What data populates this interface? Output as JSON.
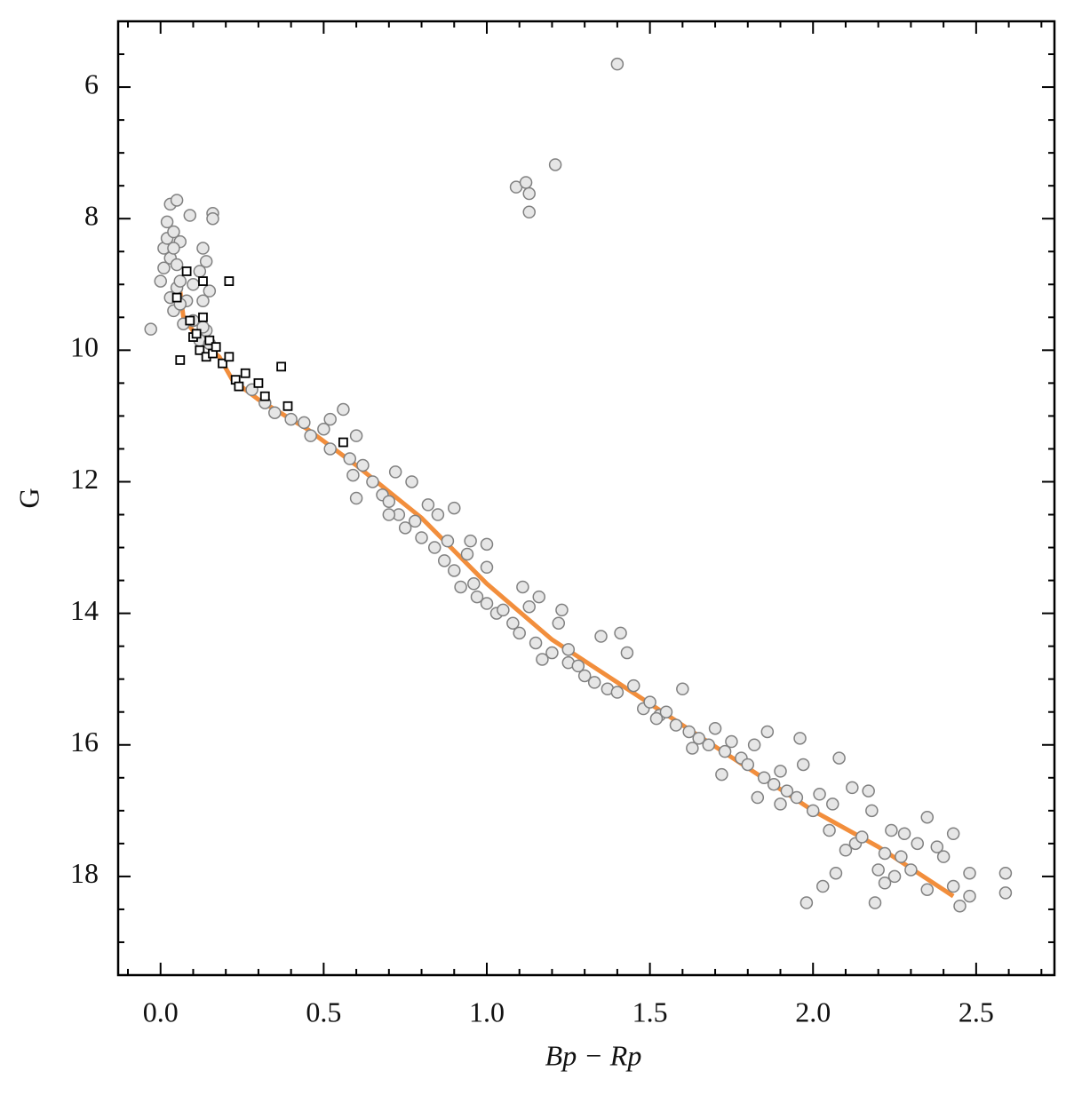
{
  "chart_data": {
    "type": "scatter",
    "xlabel": "Bp − Rp",
    "ylabel": "G",
    "xlim": [
      -0.13,
      2.74
    ],
    "ylim": [
      19.5,
      5.0
    ],
    "xticks": [
      {
        "value": 0,
        "label": "0.0"
      },
      0.5,
      {
        "value": 1,
        "label": "1.0"
      },
      1.5,
      {
        "value": 2,
        "label": "2.0"
      },
      2.5
    ],
    "yticks": [
      6,
      8,
      10,
      12,
      14,
      16,
      18
    ],
    "xminorticks": [
      -0.1,
      0.1,
      0.2,
      0.3,
      0.4,
      0.6,
      0.7,
      0.8,
      0.9,
      1.1,
      1.2,
      1.3,
      1.4,
      1.6,
      1.7,
      1.8,
      1.9,
      2.1,
      2.2,
      2.3,
      2.4,
      2.6,
      2.7
    ],
    "yminorticks": [
      5.5,
      6.5,
      7,
      7.5,
      8.5,
      9,
      9.5,
      10.5,
      11,
      11.5,
      12.5,
      13,
      13.5,
      14.5,
      15,
      15.5,
      16.5,
      17,
      17.5,
      18.5,
      19
    ],
    "series": [
      {
        "marker": "line",
        "color": "#f28e3c",
        "x": [
          0.06,
          0.07,
          0.12,
          0.18,
          0.22,
          0.3,
          0.45,
          0.6,
          0.8,
          1.0,
          1.2,
          1.4,
          1.6,
          1.8,
          2.0,
          2.2,
          2.43
        ],
        "values": [
          9.1,
          9.5,
          9.85,
          10.1,
          10.45,
          10.75,
          11.2,
          11.75,
          12.55,
          13.55,
          14.4,
          15.05,
          15.7,
          16.35,
          17.0,
          17.55,
          18.3
        ]
      },
      {
        "marker": "circle",
        "color": "#e6e6e6",
        "edgecolor": "#808080",
        "x": [
          -0.03,
          0.0,
          0.01,
          0.02,
          0.02,
          0.03,
          0.03,
          0.04,
          0.04,
          0.05,
          0.05,
          0.05,
          0.06,
          0.06,
          0.07,
          0.08,
          0.09,
          0.1,
          0.12,
          0.13,
          0.13,
          0.14,
          0.14,
          0.15,
          0.16,
          0.16,
          0.01,
          0.03,
          0.04,
          0.06,
          0.1,
          0.12,
          0.13,
          0.15,
          1.09,
          1.12,
          1.13,
          1.13,
          1.21,
          1.4,
          0.28,
          0.32,
          0.35,
          0.4,
          0.44,
          0.46,
          0.5,
          0.52,
          0.52,
          0.56,
          0.58,
          0.6,
          0.59,
          0.6,
          0.62,
          0.65,
          0.68,
          0.7,
          0.72,
          0.73,
          0.75,
          0.77,
          0.78,
          0.8,
          0.82,
          0.84,
          0.85,
          0.87,
          0.88,
          0.9,
          0.9,
          0.92,
          0.94,
          0.95,
          0.97,
          1.0,
          1.0,
          1.0,
          1.03,
          1.05,
          1.08,
          1.1,
          1.11,
          1.13,
          1.15,
          1.16,
          1.17,
          1.2,
          1.22,
          1.23,
          1.25,
          1.28,
          1.3,
          1.33,
          1.35,
          1.37,
          1.4,
          1.41,
          1.43,
          1.45,
          1.48,
          1.5,
          1.53,
          1.55,
          1.58,
          1.6,
          1.62,
          1.65,
          1.68,
          1.7,
          1.72,
          1.73,
          1.75,
          1.78,
          1.8,
          1.82,
          1.83,
          1.85,
          1.86,
          1.88,
          1.9,
          1.92,
          1.95,
          1.96,
          1.97,
          1.98,
          2.0,
          2.02,
          2.03,
          2.05,
          2.06,
          2.07,
          2.08,
          2.1,
          2.12,
          2.13,
          2.15,
          2.17,
          2.18,
          2.19,
          2.2,
          2.22,
          2.22,
          2.24,
          2.25,
          2.27,
          2.28,
          2.3,
          2.32,
          2.35,
          2.35,
          2.38,
          2.4,
          2.43,
          2.43,
          2.45,
          2.48,
          2.48,
          2.59,
          2.59,
          1.63,
          1.9,
          1.52,
          1.25,
          0.96,
          0.7
        ],
        "values": [
          9.68,
          8.95,
          8.45,
          8.3,
          8.05,
          7.78,
          8.6,
          8.2,
          9.4,
          7.72,
          8.7,
          9.05,
          8.35,
          8.95,
          9.6,
          9.25,
          7.95,
          9.0,
          8.8,
          8.45,
          9.25,
          8.65,
          9.7,
          9.1,
          7.92,
          8.0,
          8.75,
          9.2,
          8.45,
          9.3,
          9.55,
          9.85,
          9.65,
          9.9,
          7.52,
          7.45,
          7.62,
          7.9,
          7.18,
          5.65,
          10.6,
          10.8,
          10.95,
          11.05,
          11.1,
          11.3,
          11.2,
          11.5,
          11.05,
          10.9,
          11.65,
          11.3,
          11.9,
          12.25,
          11.75,
          12.0,
          12.2,
          12.3,
          11.85,
          12.5,
          12.7,
          12.0,
          12.6,
          12.85,
          12.35,
          13.0,
          12.5,
          13.2,
          12.9,
          12.4,
          13.35,
          13.6,
          13.1,
          12.9,
          13.75,
          13.85,
          13.3,
          12.95,
          14.0,
          13.95,
          14.15,
          14.3,
          13.6,
          13.9,
          14.45,
          13.75,
          14.7,
          14.6,
          14.15,
          13.95,
          14.75,
          14.8,
          14.95,
          15.05,
          14.35,
          15.15,
          15.2,
          14.3,
          14.6,
          15.1,
          15.45,
          15.35,
          15.55,
          15.5,
          15.7,
          15.15,
          15.8,
          15.9,
          16.0,
          15.75,
          16.45,
          16.1,
          15.95,
          16.2,
          16.3,
          16.0,
          16.8,
          16.5,
          15.8,
          16.6,
          16.4,
          16.7,
          16.8,
          15.9,
          16.3,
          18.4,
          17.0,
          16.75,
          18.15,
          17.3,
          16.9,
          17.95,
          16.2,
          17.6,
          16.65,
          17.5,
          17.4,
          16.7,
          17.0,
          18.4,
          17.9,
          18.1,
          17.65,
          17.3,
          18.0,
          17.7,
          17.35,
          17.9,
          17.5,
          17.1,
          18.2,
          17.55,
          17.7,
          17.35,
          18.15,
          18.45,
          18.3,
          17.95,
          17.95,
          18.25,
          16.05,
          16.9,
          15.6,
          14.55,
          13.55,
          12.5
        ]
      },
      {
        "marker": "square",
        "color": "#ffffff",
        "edgecolor": "#000000",
        "x": [
          0.05,
          0.06,
          0.08,
          0.09,
          0.1,
          0.11,
          0.12,
          0.13,
          0.13,
          0.14,
          0.15,
          0.16,
          0.17,
          0.19,
          0.21,
          0.21,
          0.23,
          0.24,
          0.26,
          0.3,
          0.32,
          0.37,
          0.39,
          0.56
        ],
        "values": [
          9.2,
          10.15,
          8.8,
          9.55,
          9.8,
          9.75,
          10.0,
          8.95,
          9.5,
          10.1,
          9.85,
          10.05,
          9.95,
          10.2,
          8.95,
          10.1,
          10.45,
          10.55,
          10.35,
          10.5,
          10.7,
          10.25,
          10.85,
          11.4
        ]
      }
    ]
  }
}
